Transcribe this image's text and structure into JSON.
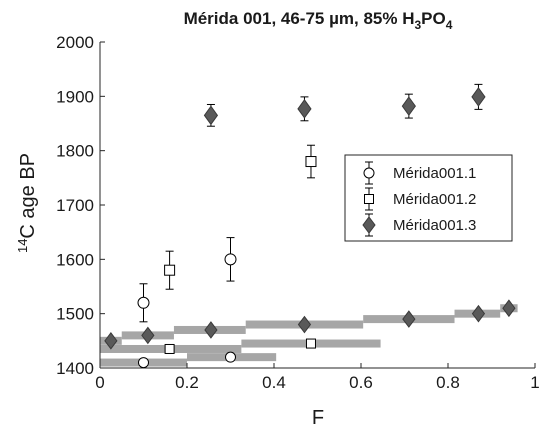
{
  "chart_data": {
    "type": "scatter",
    "title": {
      "main": "Mérida 001, 46-75 µm, 85% H",
      "sub1": "3",
      "mid": "PO",
      "sub2": "4"
    },
    "xlabel": "F",
    "ylabel": {
      "sup": "14",
      "text": "C age BP"
    },
    "xlim": [
      0,
      1
    ],
    "ylim": [
      1400,
      2000
    ],
    "xticks": [
      0,
      0.2,
      0.4,
      0.6,
      0.8,
      1
    ],
    "xtick_labels": [
      "0",
      "0.2",
      "0.4",
      "0.6",
      "0.8",
      "1"
    ],
    "yticks": [
      1400,
      1500,
      1600,
      1700,
      1800,
      1900,
      2000
    ],
    "ytick_labels": [
      "1400",
      "1500",
      "1600",
      "1700",
      "1800",
      "1900",
      "2000"
    ],
    "grid": false,
    "legend_position": "center-right",
    "series": [
      {
        "name": "Mérida001.1",
        "marker": "circle",
        "color": "#000000",
        "points": [
          {
            "x": 0.1,
            "y": 1520,
            "err": 35
          },
          {
            "x": 0.3,
            "y": 1600,
            "err": 40
          }
        ],
        "cumulative_points": [
          {
            "x": 0.1,
            "y": 1410
          },
          {
            "x": 0.3,
            "y": 1420
          }
        ],
        "bands": [
          {
            "x0": 0.0,
            "x1": 0.2,
            "y": 1410
          },
          {
            "x0": 0.2,
            "x1": 0.405,
            "y": 1420
          }
        ]
      },
      {
        "name": "Mérida001.2",
        "marker": "square",
        "color": "#000000",
        "points": [
          {
            "x": 0.16,
            "y": 1580,
            "err": 35
          },
          {
            "x": 0.485,
            "y": 1780,
            "err": 30
          }
        ],
        "cumulative_points": [
          {
            "x": 0.16,
            "y": 1435
          },
          {
            "x": 0.485,
            "y": 1445
          }
        ],
        "bands": [
          {
            "x0": 0.0,
            "x1": 0.325,
            "y": 1435
          },
          {
            "x0": 0.325,
            "x1": 0.645,
            "y": 1445
          }
        ]
      },
      {
        "name": "Mérida001.3",
        "marker": "diamond",
        "color": "#595959",
        "points": [
          {
            "x": 0.255,
            "y": 1865,
            "err": 20
          },
          {
            "x": 0.47,
            "y": 1877,
            "err": 22
          },
          {
            "x": 0.71,
            "y": 1882,
            "err": 22
          },
          {
            "x": 0.87,
            "y": 1899,
            "err": 23
          }
        ],
        "cumulative_points": [
          {
            "x": 0.025,
            "y": 1450
          },
          {
            "x": 0.11,
            "y": 1460
          },
          {
            "x": 0.255,
            "y": 1470
          },
          {
            "x": 0.47,
            "y": 1480
          },
          {
            "x": 0.71,
            "y": 1490
          },
          {
            "x": 0.87,
            "y": 1500
          },
          {
            "x": 0.94,
            "y": 1510
          }
        ],
        "bands": [
          {
            "x0": 0.0,
            "x1": 0.05,
            "y": 1450
          },
          {
            "x0": 0.05,
            "x1": 0.17,
            "y": 1460
          },
          {
            "x0": 0.17,
            "x1": 0.335,
            "y": 1470
          },
          {
            "x0": 0.335,
            "x1": 0.605,
            "y": 1480
          },
          {
            "x0": 0.605,
            "x1": 0.815,
            "y": 1490
          },
          {
            "x0": 0.815,
            "x1": 0.92,
            "y": 1500
          },
          {
            "x0": 0.92,
            "x1": 0.96,
            "y": 1510
          }
        ]
      }
    ],
    "band_color": "#a6a6a6"
  }
}
